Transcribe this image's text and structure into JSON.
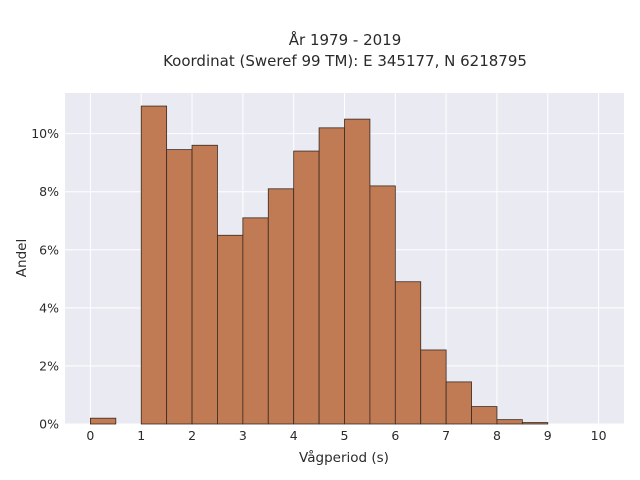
{
  "chart_data": {
    "type": "bar",
    "title_lines": [
      "År 1979 - 2019",
      "Koordinat (Sweref 99 TM): E 345177, N 6218795"
    ],
    "xlabel": "Vågperiod (s)",
    "ylabel": "Andel",
    "xlim": [
      -0.5,
      10.5
    ],
    "ylim": [
      0,
      11.4
    ],
    "x_ticks": [
      0,
      1,
      2,
      3,
      4,
      5,
      6,
      7,
      8,
      9,
      10
    ],
    "y_ticks": [
      0,
      2,
      4,
      6,
      8,
      10
    ],
    "y_tick_format": "%",
    "bin_width": 0.5,
    "bin_starts": [
      0,
      1,
      1.5,
      2,
      2.5,
      3,
      3.5,
      4,
      4.5,
      5,
      5.5,
      6,
      6.5,
      7,
      7.5,
      8,
      8.5
    ],
    "values": [
      0.2,
      10.95,
      9.45,
      9.6,
      6.5,
      7.1,
      8.1,
      9.4,
      10.2,
      10.5,
      8.2,
      4.9,
      2.55,
      1.45,
      0.6,
      0.15,
      0.05
    ],
    "bar_color": "#c07a54",
    "bar_edge_color": "#3a2a20",
    "background_color": "#eaeaf2",
    "grid": true,
    "grid_color": "#ffffff"
  }
}
